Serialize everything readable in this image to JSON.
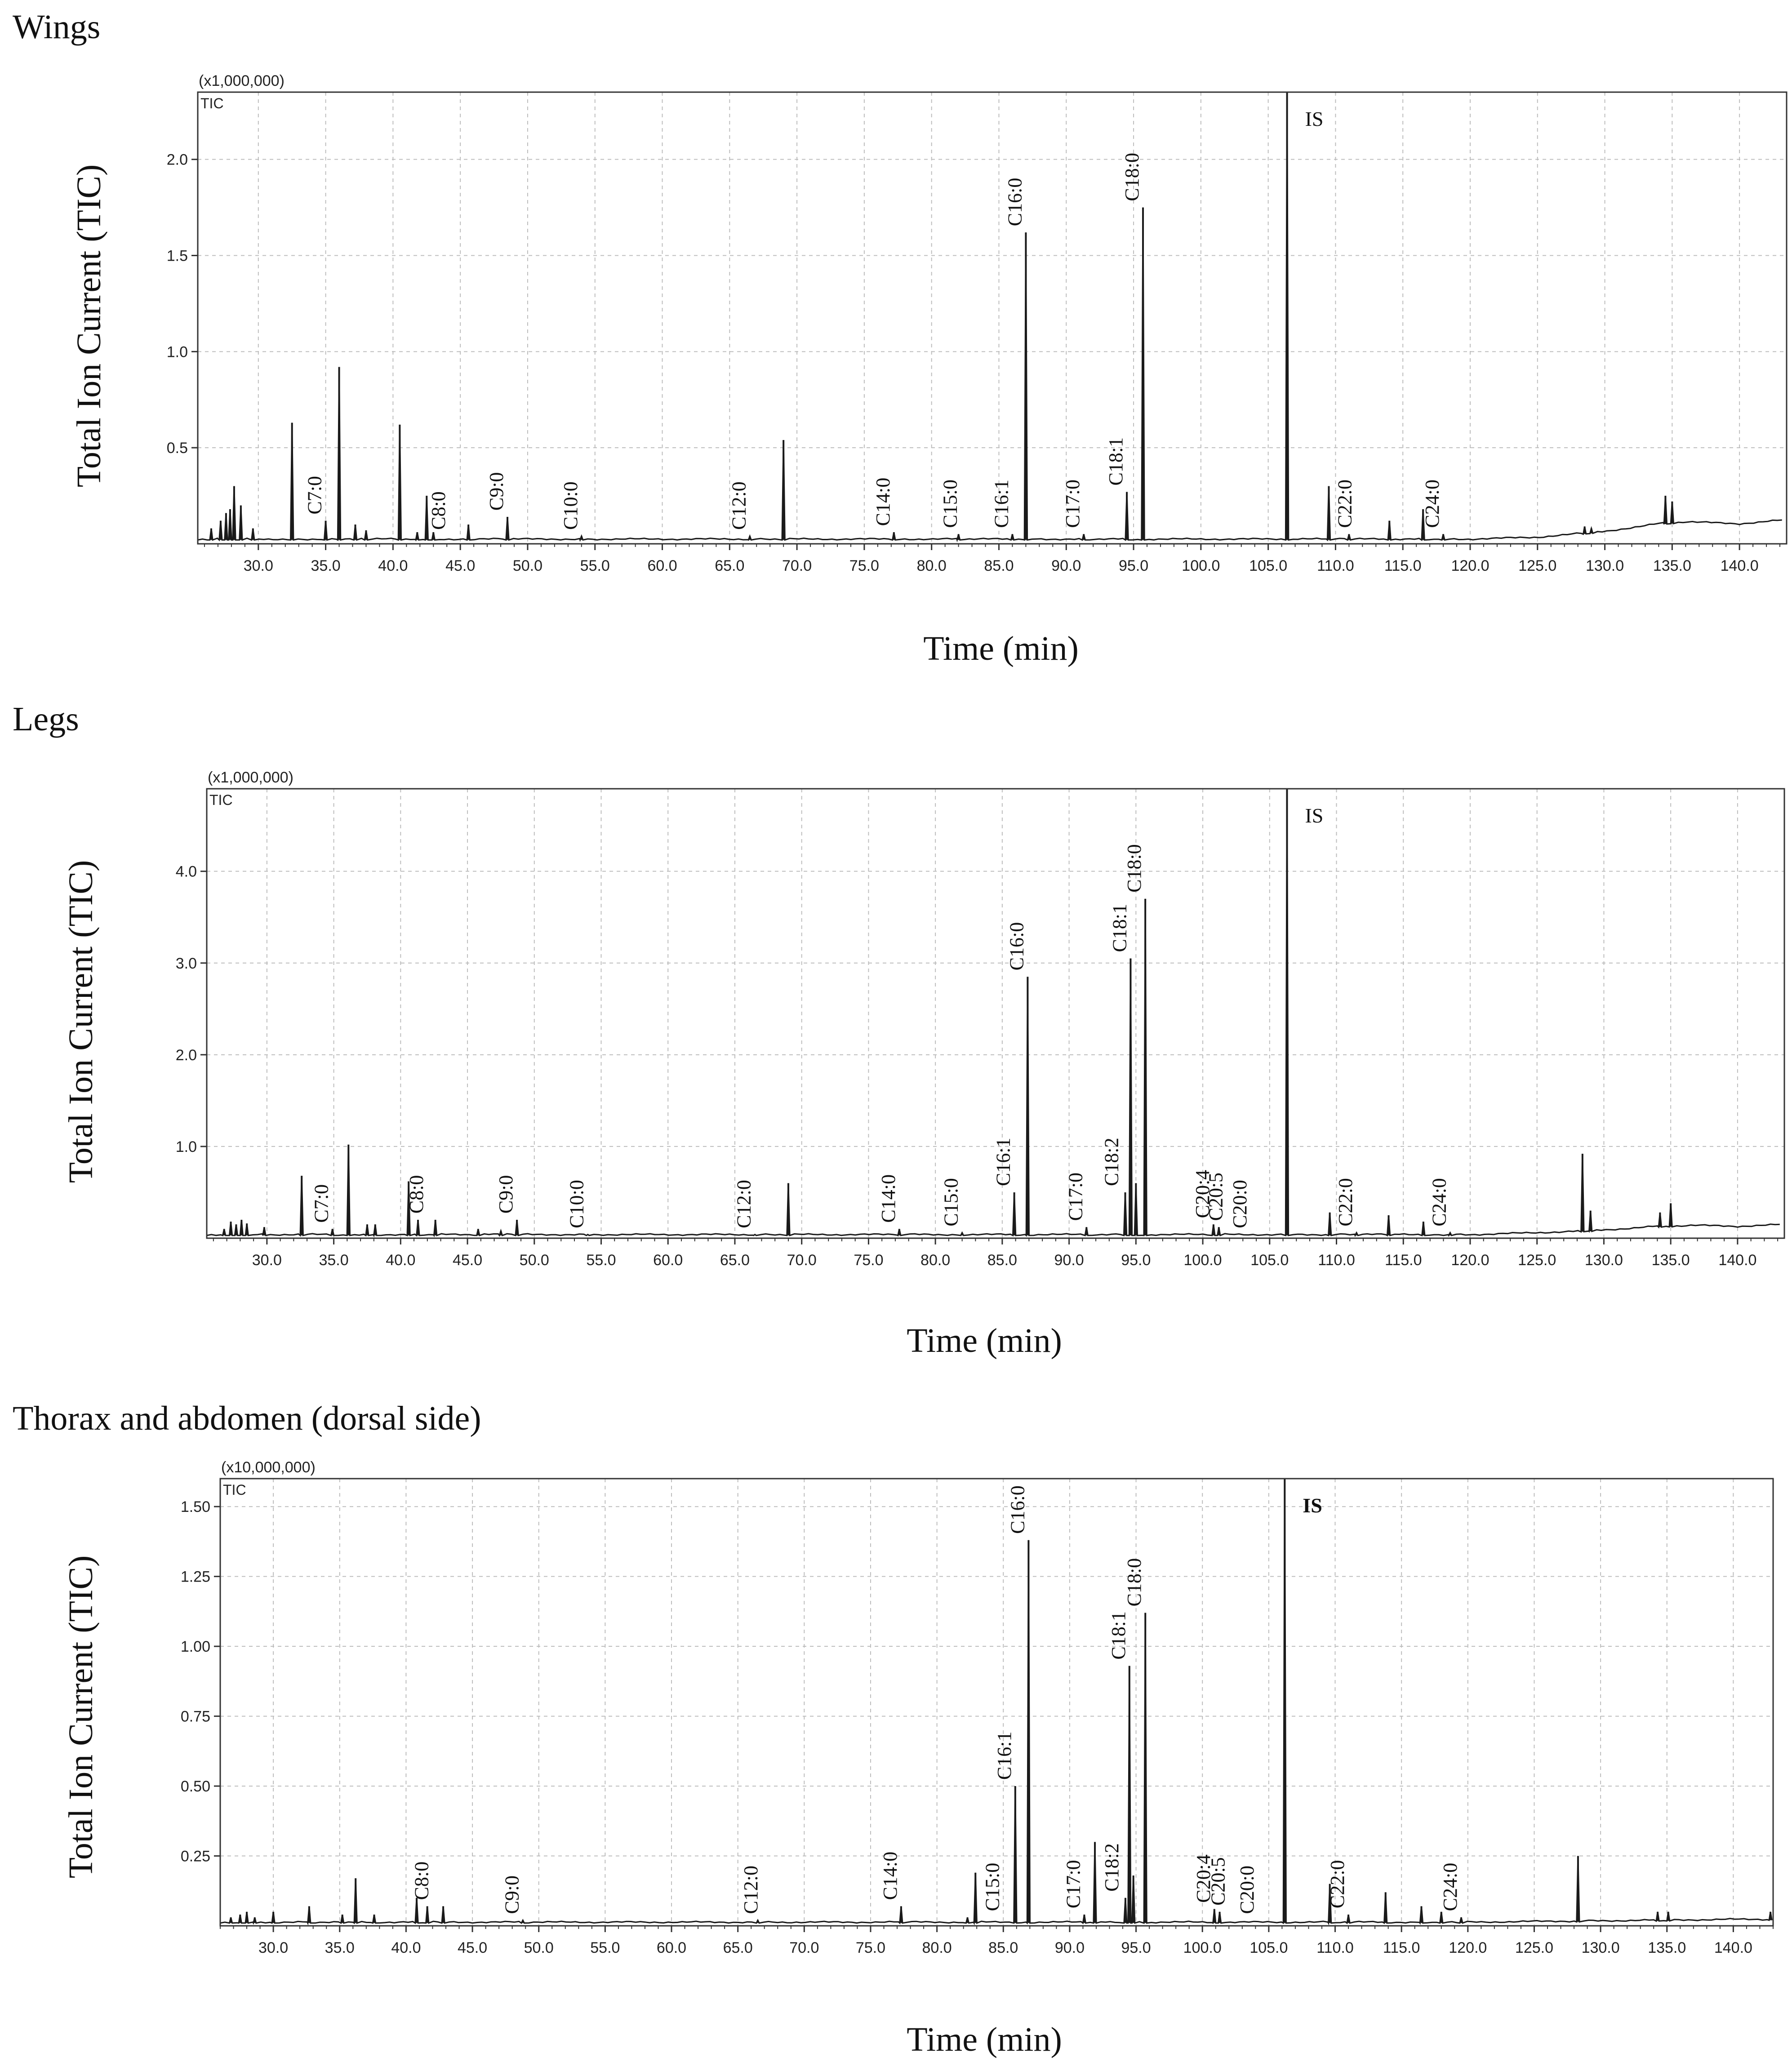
{
  "chart_data": [
    {
      "type": "line",
      "panel_title": "Wings",
      "ylabel": "Total Ion Current (TIC)",
      "xlabel": "Time (min)",
      "y_multiplier": "(x1,000,000)",
      "trace_label": "TIC",
      "xlim": [
        25.5,
        143.5
      ],
      "ylim": [
        0,
        2.35
      ],
      "x_ticks": [
        30.0,
        35.0,
        40.0,
        45.0,
        50.0,
        55.0,
        60.0,
        65.0,
        70.0,
        75.0,
        80.0,
        85.0,
        90.0,
        95.0,
        100.0,
        105.0,
        110.0,
        115.0,
        120.0,
        125.0,
        130.0,
        135.0,
        140.0
      ],
      "x_tick_labels": [
        "30.0",
        "35.0",
        "40.0",
        "45.0",
        "50.0",
        "55.0",
        "60.0",
        "65.0",
        "70.0",
        "75.0",
        "80.0",
        "85.0",
        "90.0",
        "95.0",
        "100.0",
        "105.0",
        "110.0",
        "115.0",
        "120.0",
        "125.0",
        "130.0",
        "135.0",
        "140.0"
      ],
      "y_ticks": [
        0.5,
        1.0,
        1.5,
        2.0
      ],
      "y_tick_labels": [
        "0.5",
        "1.0",
        "1.5",
        "2.0"
      ],
      "baseline": 0.02,
      "grid": true,
      "peaks": [
        {
          "x": 26.5,
          "y": 0.08
        },
        {
          "x": 27.2,
          "y": 0.12
        },
        {
          "x": 27.6,
          "y": 0.16
        },
        {
          "x": 27.9,
          "y": 0.18
        },
        {
          "x": 28.2,
          "y": 0.3
        },
        {
          "x": 28.7,
          "y": 0.2
        },
        {
          "x": 29.6,
          "y": 0.08
        },
        {
          "x": 32.5,
          "y": 0.63
        },
        {
          "x": 35.0,
          "y": 0.12
        },
        {
          "x": 36.0,
          "y": 0.92
        },
        {
          "x": 37.2,
          "y": 0.1
        },
        {
          "x": 38.0,
          "y": 0.07
        },
        {
          "x": 40.5,
          "y": 0.62
        },
        {
          "x": 41.8,
          "y": 0.06
        },
        {
          "x": 42.5,
          "y": 0.25
        },
        {
          "x": 43.0,
          "y": 0.06
        },
        {
          "x": 45.6,
          "y": 0.1
        },
        {
          "x": 48.5,
          "y": 0.14
        },
        {
          "x": 54.0,
          "y": 0.04
        },
        {
          "x": 66.5,
          "y": 0.04
        },
        {
          "x": 69.0,
          "y": 0.54
        },
        {
          "x": 77.2,
          "y": 0.06
        },
        {
          "x": 82.0,
          "y": 0.05
        },
        {
          "x": 86.0,
          "y": 0.05
        },
        {
          "x": 87.0,
          "y": 1.62
        },
        {
          "x": 91.3,
          "y": 0.05
        },
        {
          "x": 94.5,
          "y": 0.27
        },
        {
          "x": 95.7,
          "y": 1.75
        },
        {
          "x": 106.4,
          "y": 2.4
        },
        {
          "x": 109.5,
          "y": 0.3
        },
        {
          "x": 111.0,
          "y": 0.05
        },
        {
          "x": 114.0,
          "y": 0.12
        },
        {
          "x": 116.5,
          "y": 0.18
        },
        {
          "x": 118.0,
          "y": 0.05
        },
        {
          "x": 128.5,
          "y": 0.09
        },
        {
          "x": 129.0,
          "y": 0.08
        },
        {
          "x": 134.5,
          "y": 0.25
        },
        {
          "x": 135.0,
          "y": 0.22
        }
      ],
      "drift": [
        [
          120.0,
          0.02
        ],
        [
          125.0,
          0.03
        ],
        [
          130.0,
          0.06
        ],
        [
          134.0,
          0.1
        ],
        [
          136.0,
          0.11
        ],
        [
          140.0,
          0.1
        ],
        [
          143.5,
          0.12
        ]
      ],
      "annotations": [
        {
          "label": "C7:0",
          "x": 35.0,
          "y": 0.12
        },
        {
          "label": "C8:0",
          "x": 44.2,
          "y": 0.04
        },
        {
          "label": "C9:0",
          "x": 48.5,
          "y": 0.14
        },
        {
          "label": "C10:0",
          "x": 54.0,
          "y": 0.04
        },
        {
          "label": "C12:0",
          "x": 66.5,
          "y": 0.04
        },
        {
          "label": "C14:0",
          "x": 77.2,
          "y": 0.06
        },
        {
          "label": "C15:0",
          "x": 82.2,
          "y": 0.05
        },
        {
          "label": "C16:1",
          "x": 86.0,
          "y": 0.05
        },
        {
          "label": "C16:0",
          "x": 87.0,
          "y": 1.62
        },
        {
          "label": "C17:0",
          "x": 91.3,
          "y": 0.05
        },
        {
          "label": "C18:1",
          "x": 94.5,
          "y": 0.27
        },
        {
          "label": "C18:0",
          "x": 95.7,
          "y": 1.75
        },
        {
          "label": "C22:0",
          "x": 111.5,
          "y": 0.05
        },
        {
          "label": "C24:0",
          "x": 118.0,
          "y": 0.05
        }
      ],
      "is_label": "IS",
      "is_x": 106.4
    },
    {
      "type": "line",
      "panel_title": "Legs",
      "ylabel": "Total Ion Current (TIC)",
      "xlabel": "Time (min)",
      "y_multiplier": "(x1,000,000)",
      "trace_label": "TIC",
      "xlim": [
        25.5,
        143.5
      ],
      "ylim": [
        0,
        4.9
      ],
      "x_ticks": [
        30.0,
        35.0,
        40.0,
        45.0,
        50.0,
        55.0,
        60.0,
        65.0,
        70.0,
        75.0,
        80.0,
        85.0,
        90.0,
        95.0,
        100.0,
        105.0,
        110.0,
        115.0,
        120.0,
        125.0,
        130.0,
        135.0,
        140.0
      ],
      "x_tick_labels": [
        "30.0",
        "35.0",
        "40.0",
        "45.0",
        "50.0",
        "55.0",
        "60.0",
        "65.0",
        "70.0",
        "75.0",
        "80.0",
        "85.0",
        "90.0",
        "95.0",
        "100.0",
        "105.0",
        "110.0",
        "115.0",
        "120.0",
        "125.0",
        "130.0",
        "135.0",
        "140.0"
      ],
      "y_ticks": [
        1.0,
        2.0,
        3.0,
        4.0
      ],
      "y_tick_labels": [
        "1.0",
        "2.0",
        "3.0",
        "4.0"
      ],
      "baseline": 0.03,
      "grid": true,
      "peaks": [
        {
          "x": 26.8,
          "y": 0.1
        },
        {
          "x": 27.3,
          "y": 0.18
        },
        {
          "x": 27.7,
          "y": 0.15
        },
        {
          "x": 28.1,
          "y": 0.2
        },
        {
          "x": 28.5,
          "y": 0.16
        },
        {
          "x": 29.8,
          "y": 0.12
        },
        {
          "x": 32.6,
          "y": 0.68
        },
        {
          "x": 34.9,
          "y": 0.1
        },
        {
          "x": 36.1,
          "y": 1.02
        },
        {
          "x": 37.5,
          "y": 0.15
        },
        {
          "x": 38.1,
          "y": 0.15
        },
        {
          "x": 40.6,
          "y": 0.62
        },
        {
          "x": 41.3,
          "y": 0.2
        },
        {
          "x": 42.6,
          "y": 0.2
        },
        {
          "x": 45.8,
          "y": 0.1
        },
        {
          "x": 47.5,
          "y": 0.08
        },
        {
          "x": 48.7,
          "y": 0.2
        },
        {
          "x": 54.0,
          "y": 0.04
        },
        {
          "x": 66.5,
          "y": 0.04
        },
        {
          "x": 69.0,
          "y": 0.6
        },
        {
          "x": 77.3,
          "y": 0.1
        },
        {
          "x": 82.0,
          "y": 0.06
        },
        {
          "x": 85.9,
          "y": 0.5
        },
        {
          "x": 86.9,
          "y": 2.85
        },
        {
          "x": 91.3,
          "y": 0.12
        },
        {
          "x": 94.2,
          "y": 0.5
        },
        {
          "x": 94.6,
          "y": 3.05
        },
        {
          "x": 95.0,
          "y": 0.6
        },
        {
          "x": 95.7,
          "y": 3.7
        },
        {
          "x": 100.8,
          "y": 0.15
        },
        {
          "x": 101.2,
          "y": 0.12
        },
        {
          "x": 106.3,
          "y": 5.0
        },
        {
          "x": 109.5,
          "y": 0.28
        },
        {
          "x": 111.5,
          "y": 0.06
        },
        {
          "x": 113.9,
          "y": 0.25
        },
        {
          "x": 116.5,
          "y": 0.18
        },
        {
          "x": 118.5,
          "y": 0.06
        },
        {
          "x": 128.4,
          "y": 0.92
        },
        {
          "x": 129.0,
          "y": 0.3
        },
        {
          "x": 134.2,
          "y": 0.28
        },
        {
          "x": 135.0,
          "y": 0.38
        }
      ],
      "drift": [
        [
          120.0,
          0.03
        ],
        [
          125.0,
          0.05
        ],
        [
          130.0,
          0.08
        ],
        [
          134.0,
          0.12
        ],
        [
          137.0,
          0.13
        ],
        [
          140.0,
          0.12
        ],
        [
          143.5,
          0.14
        ]
      ],
      "annotations": [
        {
          "label": "C7:0",
          "x": 34.9,
          "y": 0.1
        },
        {
          "label": "C8:0",
          "x": 42.0,
          "y": 0.2
        },
        {
          "label": "C9:0",
          "x": 48.7,
          "y": 0.2
        },
        {
          "label": "C10:0",
          "x": 54.0,
          "y": 0.04
        },
        {
          "label": "C12:0",
          "x": 66.5,
          "y": 0.04
        },
        {
          "label": "C14:0",
          "x": 77.3,
          "y": 0.1
        },
        {
          "label": "C15:0",
          "x": 82.0,
          "y": 0.06
        },
        {
          "label": "C16:1",
          "x": 85.9,
          "y": 0.5
        },
        {
          "label": "C16:0",
          "x": 86.9,
          "y": 2.85
        },
        {
          "label": "C17:0",
          "x": 91.3,
          "y": 0.12
        },
        {
          "label": "C18:2",
          "x": 94.0,
          "y": 0.5
        },
        {
          "label": "C18:1",
          "x": 94.6,
          "y": 3.05
        },
        {
          "label": "C18:0",
          "x": 95.7,
          "y": 3.7
        },
        {
          "label": "C20:4",
          "x": 100.8,
          "y": 0.15
        },
        {
          "label": "C20:5",
          "x": 101.8,
          "y": 0.12
        },
        {
          "label": "C20:0",
          "x": 103.6,
          "y": 0.04
        },
        {
          "label": "C22:0",
          "x": 111.5,
          "y": 0.06
        },
        {
          "label": "C24:0",
          "x": 118.5,
          "y": 0.06
        }
      ],
      "is_label": "IS",
      "is_x": 106.3
    },
    {
      "type": "line",
      "panel_title": "Thorax and abdomen (dorsal side)",
      "ylabel": "Total Ion Current (TIC)",
      "xlabel": "Time (min)",
      "y_multiplier": "(x10,000,000)",
      "trace_label": "TIC",
      "xlim": [
        26.0,
        143.0
      ],
      "ylim": [
        0,
        1.6
      ],
      "x_ticks": [
        30.0,
        35.0,
        40.0,
        45.0,
        50.0,
        55.0,
        60.0,
        65.0,
        70.0,
        75.0,
        80.0,
        85.0,
        90.0,
        95.0,
        100.0,
        105.0,
        110.0,
        115.0,
        120.0,
        125.0,
        130.0,
        135.0,
        140.0
      ],
      "x_tick_labels": [
        "30.0",
        "35.0",
        "40.0",
        "45.0",
        "50.0",
        "55.0",
        "60.0",
        "65.0",
        "70.0",
        "75.0",
        "80.0",
        "85.0",
        "90.0",
        "95.0",
        "100.0",
        "105.0",
        "110.0",
        "115.0",
        "120.0",
        "125.0",
        "130.0",
        "135.0",
        "140.0"
      ],
      "y_ticks": [
        0.25,
        0.5,
        0.75,
        1.0,
        1.25,
        1.5
      ],
      "y_tick_labels": [
        "0.25",
        "0.50",
        "0.75",
        "1.00",
        "1.25",
        "1.50"
      ],
      "baseline": 0.01,
      "grid": true,
      "peaks": [
        {
          "x": 26.8,
          "y": 0.03
        },
        {
          "x": 27.5,
          "y": 0.04
        },
        {
          "x": 28.0,
          "y": 0.05
        },
        {
          "x": 28.6,
          "y": 0.03
        },
        {
          "x": 30.0,
          "y": 0.05
        },
        {
          "x": 32.7,
          "y": 0.07
        },
        {
          "x": 35.2,
          "y": 0.04
        },
        {
          "x": 36.2,
          "y": 0.17
        },
        {
          "x": 37.6,
          "y": 0.04
        },
        {
          "x": 40.8,
          "y": 0.1
        },
        {
          "x": 41.6,
          "y": 0.07
        },
        {
          "x": 42.8,
          "y": 0.07
        },
        {
          "x": 48.8,
          "y": 0.02
        },
        {
          "x": 66.5,
          "y": 0.02
        },
        {
          "x": 77.3,
          "y": 0.07
        },
        {
          "x": 82.3,
          "y": 0.03
        },
        {
          "x": 82.9,
          "y": 0.19
        },
        {
          "x": 85.9,
          "y": 0.5
        },
        {
          "x": 86.9,
          "y": 1.38
        },
        {
          "x": 91.1,
          "y": 0.04
        },
        {
          "x": 91.9,
          "y": 0.3
        },
        {
          "x": 94.2,
          "y": 0.1
        },
        {
          "x": 94.5,
          "y": 0.93
        },
        {
          "x": 94.8,
          "y": 0.18
        },
        {
          "x": 95.7,
          "y": 1.12
        },
        {
          "x": 100.9,
          "y": 0.06
        },
        {
          "x": 101.3,
          "y": 0.05
        },
        {
          "x": 106.2,
          "y": 1.62
        },
        {
          "x": 109.6,
          "y": 0.15
        },
        {
          "x": 111.0,
          "y": 0.04
        },
        {
          "x": 113.8,
          "y": 0.12
        },
        {
          "x": 116.5,
          "y": 0.07
        },
        {
          "x": 118.0,
          "y": 0.05
        },
        {
          "x": 119.5,
          "y": 0.03
        },
        {
          "x": 128.3,
          "y": 0.25
        },
        {
          "x": 134.3,
          "y": 0.05
        },
        {
          "x": 135.1,
          "y": 0.05
        },
        {
          "x": 142.8,
          "y": 0.05
        }
      ],
      "drift": [
        [
          120.0,
          0.01
        ],
        [
          130.0,
          0.015
        ],
        [
          140.0,
          0.02
        ],
        [
          143.0,
          0.02
        ]
      ],
      "annotations": [
        {
          "label": "C8:0",
          "x": 42.0,
          "y": 0.07
        },
        {
          "label": "C9:0",
          "x": 48.8,
          "y": 0.02
        },
        {
          "label": "C12:0",
          "x": 66.8,
          "y": 0.02
        },
        {
          "label": "C14:0",
          "x": 77.3,
          "y": 0.07
        },
        {
          "label": "C15:0",
          "x": 85.0,
          "y": 0.03
        },
        {
          "label": "C16:1",
          "x": 85.9,
          "y": 0.5
        },
        {
          "label": "C16:0",
          "x": 86.9,
          "y": 1.38
        },
        {
          "label": "C17:0",
          "x": 91.1,
          "y": 0.04
        },
        {
          "label": "C18:2",
          "x": 94.0,
          "y": 0.1
        },
        {
          "label": "C18:1",
          "x": 94.5,
          "y": 0.93
        },
        {
          "label": "C18:0",
          "x": 95.7,
          "y": 1.12
        },
        {
          "label": "C20:4",
          "x": 100.9,
          "y": 0.06
        },
        {
          "label": "C20:5",
          "x": 102.0,
          "y": 0.05
        },
        {
          "label": "C20:0",
          "x": 104.2,
          "y": 0.02
        },
        {
          "label": "C22:0",
          "x": 111.0,
          "y": 0.04
        },
        {
          "label": "C24:0",
          "x": 119.5,
          "y": 0.03
        }
      ],
      "is_label": "IS",
      "is_x": 106.2
    }
  ],
  "colors": {
    "trace": "#1a1a1a",
    "frame": "#333333",
    "grid": "#bdbdbd",
    "text": "#111111"
  }
}
